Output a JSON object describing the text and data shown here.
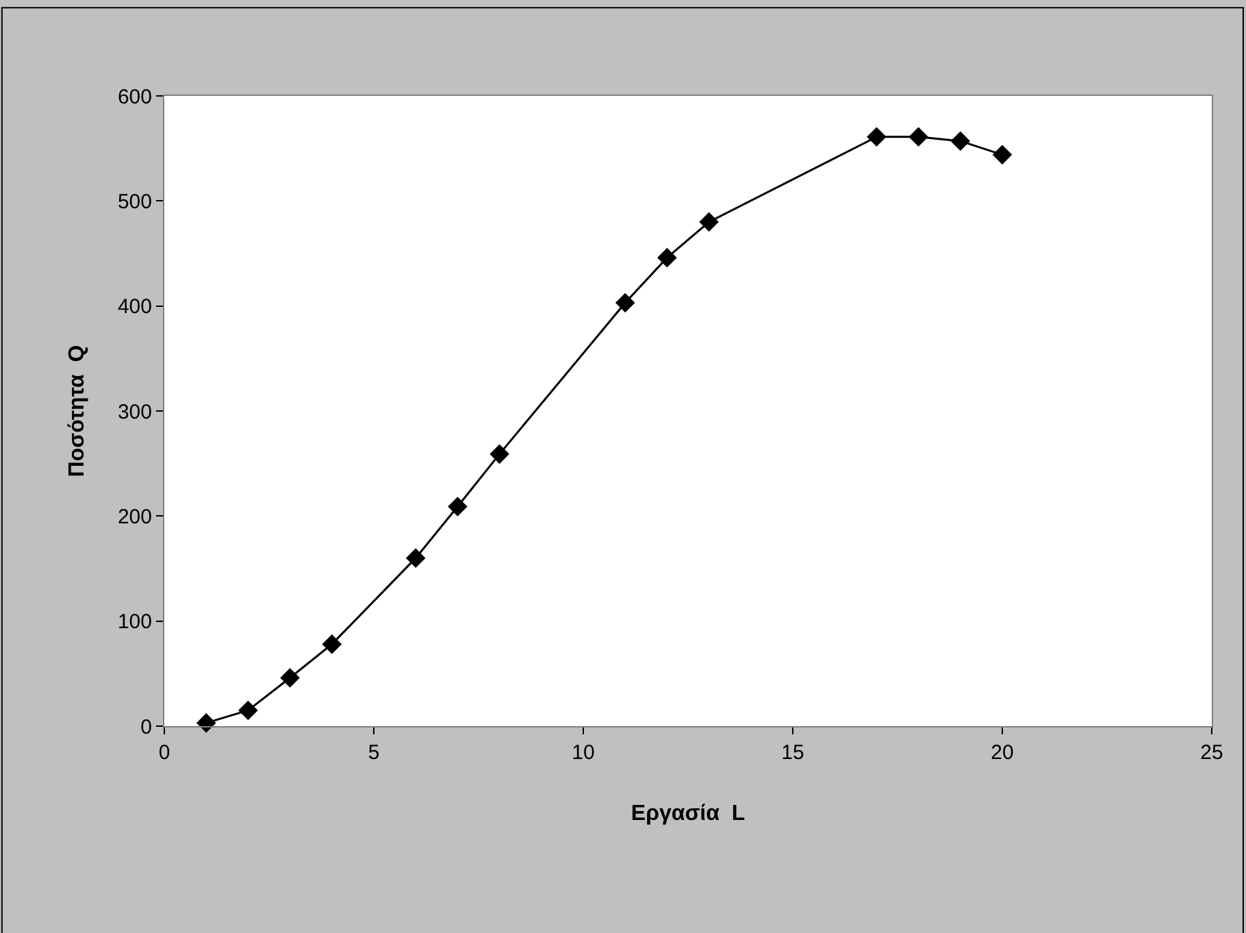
{
  "chart_data": {
    "type": "line",
    "xlabel": "Εργασία  L",
    "ylabel": "Ποσότητα  Q",
    "x": [
      1,
      2,
      3,
      4,
      6,
      7,
      8,
      11,
      12,
      13,
      17,
      18,
      19,
      20
    ],
    "series": [
      {
        "color": "#000000",
        "values": [
          3,
          15,
          46,
          78,
          160,
          209,
          259,
          403,
          446,
          480,
          561,
          561,
          557,
          544
        ]
      }
    ],
    "xlim": [
      0,
      25
    ],
    "xticks": [
      0,
      5,
      10,
      15,
      20,
      25
    ],
    "ylim": [
      0,
      600
    ],
    "yticks": [
      0,
      100,
      200,
      300,
      400,
      500,
      600
    ],
    "legend": false,
    "marker": "diamond",
    "line_style": "solid"
  }
}
